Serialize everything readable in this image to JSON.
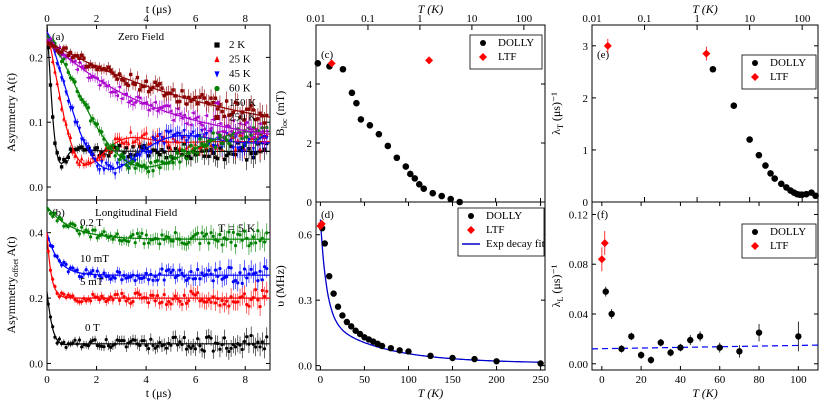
{
  "chart_data": [
    {
      "id": "a",
      "type": "scatter",
      "panel_label": "(a)",
      "title": "Zero Field",
      "xlabel": "t (μs)",
      "top_xlabel": "t (μs)",
      "ylabel": "Asymmetry A(t)",
      "xlim": [
        0,
        9
      ],
      "ylim": [
        -0.02,
        0.25
      ],
      "xticks": [
        0,
        2,
        4,
        6,
        8
      ],
      "yticks": [
        0.0,
        0.1,
        0.2
      ],
      "xtick_labels": [
        "0",
        "2",
        "4",
        "6",
        "8"
      ],
      "ytick_labels": [
        "0.0",
        "0.1",
        "0.2"
      ],
      "legend": "top-right",
      "series": [
        {
          "name": "2 K",
          "color": "#000000",
          "marker": "square"
        },
        {
          "name": "25 K",
          "color": "#ff0000",
          "marker": "triangle-up"
        },
        {
          "name": "45 K",
          "color": "#0000ff",
          "marker": "triangle-down"
        },
        {
          "name": "60 K",
          "color": "#008000",
          "marker": "circle"
        },
        {
          "name": "150 K",
          "color": "#aa00cc",
          "marker": "triangle-left"
        },
        {
          "name": "250 K",
          "color": "#8b0000",
          "marker": "square"
        }
      ]
    },
    {
      "id": "b",
      "type": "scatter",
      "panel_label": "(b)",
      "title": "Longitudinal Field",
      "annotation": "T = 5 K",
      "xlabel": "t (μs)",
      "ylabel": "Asymmetry offset A(t)",
      "xlim": [
        0,
        9
      ],
      "ylim": [
        -0.02,
        0.5
      ],
      "xticks": [
        0,
        2,
        4,
        6,
        8
      ],
      "yticks": [
        0.0,
        0.2,
        0.4
      ],
      "xtick_labels": [
        "0",
        "2",
        "4",
        "6",
        "8"
      ],
      "ytick_labels": [
        "0.0",
        "0.2",
        "0.4"
      ],
      "series": [
        {
          "name": "0.2 T",
          "color": "#008000",
          "baseline": 0.38
        },
        {
          "name": "10 mT",
          "color": "#0000ff",
          "baseline": 0.27
        },
        {
          "name": "5 mT",
          "color": "#ff0000",
          "baseline": 0.2
        },
        {
          "name": "0 T",
          "color": "#000000",
          "baseline": 0.06
        }
      ]
    },
    {
      "id": "c",
      "type": "scatter",
      "panel_label": "(c)",
      "top_xlabel": "T (K)",
      "top_xscale": "log",
      "top_xtick_labels": [
        "0.01",
        "0.1",
        "1",
        "10",
        "100"
      ],
      "ylabel": "B_loc (mT)",
      "xlim": [
        0,
        255
      ],
      "ylim": [
        0,
        6
      ],
      "yticks": [
        0,
        2,
        4
      ],
      "ytick_labels": [
        "0",
        "2",
        "4"
      ],
      "legend": "top-right",
      "series": [
        {
          "name": "DOLLY",
          "color": "#000000",
          "marker": "circle",
          "x": [
            2,
            15,
            30,
            40,
            45,
            50,
            60,
            70,
            80,
            90,
            100,
            105,
            110,
            115,
            120,
            130,
            140,
            150,
            160
          ],
          "y": [
            4.7,
            4.6,
            4.5,
            3.7,
            3.35,
            2.8,
            2.6,
            2.3,
            1.9,
            1.5,
            1.2,
            0.95,
            0.8,
            0.6,
            0.45,
            0.3,
            0.2,
            0.1,
            0.0
          ]
        },
        {
          "name": "LTF",
          "color": "#ff0000",
          "marker": "diamond",
          "x": [
            0.02,
            1.5
          ],
          "y": [
            4.7,
            4.8
          ]
        }
      ]
    },
    {
      "id": "d",
      "type": "scatter",
      "panel_label": "(d)",
      "xlabel": "T (K)",
      "ylabel": "υ (MHz)",
      "xlim": [
        -5,
        255
      ],
      "ylim": [
        -0.02,
        0.75
      ],
      "xticks": [
        0,
        50,
        100,
        150,
        200,
        250
      ],
      "yticks": [
        0.0,
        0.3,
        0.6
      ],
      "xtick_labels": [
        "0",
        "50",
        "100",
        "150",
        "200",
        "250"
      ],
      "ytick_labels": [
        "0.0",
        "0.3",
        "0.6"
      ],
      "legend": "top-right",
      "series": [
        {
          "name": "DOLLY",
          "color": "#000000",
          "marker": "circle",
          "x": [
            2,
            5,
            10,
            15,
            20,
            25,
            30,
            35,
            40,
            45,
            50,
            55,
            60,
            65,
            70,
            80,
            90,
            100,
            125,
            150,
            175,
            200,
            250
          ],
          "y": [
            0.63,
            0.56,
            0.41,
            0.33,
            0.27,
            0.23,
            0.2,
            0.18,
            0.16,
            0.145,
            0.13,
            0.12,
            0.11,
            0.1,
            0.09,
            0.08,
            0.07,
            0.065,
            0.045,
            0.035,
            0.03,
            0.02,
            0.01
          ]
        },
        {
          "name": "LTF",
          "color": "#ff0000",
          "marker": "diamond",
          "x": [
            0.02,
            1.5
          ],
          "y": [
            0.64,
            0.65
          ]
        },
        {
          "name": "Exp decay fit",
          "color": "#0000cc",
          "type": "line"
        }
      ]
    },
    {
      "id": "e",
      "type": "scatter",
      "panel_label": "(e)",
      "top_xlabel": "T (K)",
      "top_xscale": "log",
      "top_xtick_labels": [
        "0.01",
        "0.1",
        "1",
        "10",
        "100"
      ],
      "ylabel": "λ_T (μs)^-1",
      "xlim": [
        0.01,
        200
      ],
      "ylim": [
        0,
        3.4
      ],
      "yticks": [
        0,
        1,
        2,
        3
      ],
      "ytick_labels": [
        "0",
        "1",
        "2",
        "3"
      ],
      "legend": "top-right",
      "series": [
        {
          "name": "DOLLY",
          "color": "#000000",
          "marker": "circle",
          "x": [
            2,
            5,
            10,
            15,
            20,
            25,
            30,
            40,
            50,
            60,
            70,
            80,
            90,
            100,
            120,
            150,
            180
          ],
          "y": [
            2.55,
            1.85,
            1.2,
            0.9,
            0.7,
            0.55,
            0.45,
            0.35,
            0.28,
            0.22,
            0.18,
            0.15,
            0.14,
            0.14,
            0.15,
            0.18,
            0.12
          ]
        },
        {
          "name": "LTF",
          "color": "#ff0000",
          "marker": "diamond",
          "x": [
            0.02,
            1.5
          ],
          "y": [
            3.0,
            2.85
          ]
        }
      ]
    },
    {
      "id": "f",
      "type": "scatter",
      "panel_label": "(f)",
      "xlabel": "T (K)",
      "ylabel": "λ_L (μs)^-1",
      "xlim": [
        -5,
        110
      ],
      "ylim": [
        -0.005,
        0.13
      ],
      "xticks": [
        0,
        20,
        40,
        60,
        80,
        100
      ],
      "yticks": [
        0.0,
        0.04,
        0.08,
        0.12
      ],
      "xtick_labels": [
        "0",
        "20",
        "40",
        "60",
        "80",
        "100"
      ],
      "ytick_labels": [
        "0.00",
        "0.04",
        "0.08",
        "0.12"
      ],
      "legend": "top-right",
      "series": [
        {
          "name": "DOLLY",
          "color": "#000000",
          "marker": "circle",
          "x": [
            2,
            5,
            10,
            15,
            20,
            25,
            30,
            35,
            40,
            45,
            50,
            60,
            70,
            80,
            100
          ],
          "y": [
            0.058,
            0.04,
            0.012,
            0.022,
            0.007,
            0.003,
            0.017,
            0.009,
            0.013,
            0.019,
            0.022,
            0.013,
            0.01,
            0.025,
            0.022
          ]
        },
        {
          "name": "LTF",
          "color": "#ff0000",
          "marker": "diamond",
          "x": [
            0.02,
            1.5
          ],
          "y": [
            0.084,
            0.097
          ]
        },
        {
          "name": "baseline",
          "color": "#0000ff",
          "type": "dashed",
          "value": 0.012
        }
      ]
    }
  ]
}
